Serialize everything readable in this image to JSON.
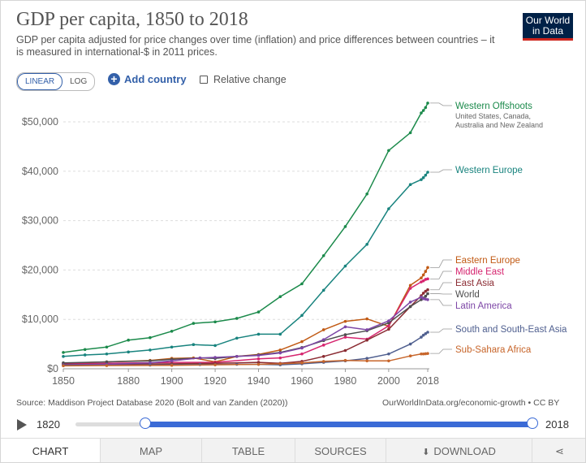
{
  "header": {
    "title": "GDP per capita, 1850 to 2018",
    "subtitle": "GDP per capita adjusted for price changes over time (inflation) and price differences between countries – it is measured in international-$ in 2011 prices.",
    "logo_line1": "Our World",
    "logo_line2": "in Data"
  },
  "controls": {
    "linear_label": "LINEAR",
    "log_label": "LOG",
    "add_country_label": "Add country",
    "relative_change_label": "Relative change"
  },
  "footer": {
    "source": "Source: Maddison Project Database 2020 (Bolt and van Zanden (2020))",
    "link": "OurWorldInData.org/economic-growth • CC BY"
  },
  "timeline": {
    "start_year": "1820",
    "end_year": "2018",
    "start_fraction": 0.153,
    "end_fraction": 1.0
  },
  "tabs": {
    "chart": "CHART",
    "map": "MAP",
    "table": "TABLE",
    "sources": "SOURCES",
    "download": "DOWNLOAD"
  },
  "chart_data": {
    "type": "line",
    "title": "GDP per capita, 1850 to 2018",
    "xlabel": "",
    "ylabel": "",
    "xlim": [
      1850,
      2018
    ],
    "ylim": [
      0,
      55000
    ],
    "x_ticks": [
      1850,
      1880,
      1900,
      1920,
      1940,
      1960,
      1980,
      2000,
      2018
    ],
    "x_tick_labels": [
      "1850",
      "1880",
      "1900",
      "1920",
      "1940",
      "1960",
      "1980",
      "2000",
      "2018"
    ],
    "y_ticks": [
      0,
      10000,
      20000,
      30000,
      40000,
      50000
    ],
    "y_tick_labels": [
      "$0",
      "$10,000",
      "$20,000",
      "$30,000",
      "$40,000",
      "$50,000"
    ],
    "series": [
      {
        "name": "Western Offshoots",
        "note": "United States, Canada, Australia and New Zealand",
        "color": "#1b8a4b",
        "points": [
          [
            1850,
            3300
          ],
          [
            1860,
            3900
          ],
          [
            1870,
            4400
          ],
          [
            1880,
            5800
          ],
          [
            1890,
            6300
          ],
          [
            1900,
            7600
          ],
          [
            1910,
            9200
          ],
          [
            1920,
            9500
          ],
          [
            1930,
            10200
          ],
          [
            1940,
            11500
          ],
          [
            1950,
            14600
          ],
          [
            1960,
            17200
          ],
          [
            1970,
            22900
          ],
          [
            1980,
            28800
          ],
          [
            1990,
            35400
          ],
          [
            2000,
            44200
          ],
          [
            2010,
            47800
          ],
          [
            2015,
            51800
          ],
          [
            2016,
            52300
          ],
          [
            2017,
            52900
          ],
          [
            2018,
            53800
          ]
        ]
      },
      {
        "name": "Western Europe",
        "color": "#18837e",
        "points": [
          [
            1850,
            2500
          ],
          [
            1860,
            2800
          ],
          [
            1870,
            3000
          ],
          [
            1880,
            3400
          ],
          [
            1890,
            3800
          ],
          [
            1900,
            4400
          ],
          [
            1910,
            4900
          ],
          [
            1920,
            4700
          ],
          [
            1930,
            6200
          ],
          [
            1940,
            7000
          ],
          [
            1950,
            7000
          ],
          [
            1960,
            10800
          ],
          [
            1970,
            15900
          ],
          [
            1980,
            20800
          ],
          [
            1990,
            25200
          ],
          [
            2000,
            32400
          ],
          [
            2010,
            37300
          ],
          [
            2015,
            38300
          ],
          [
            2016,
            38700
          ],
          [
            2017,
            39200
          ],
          [
            2018,
            39800
          ]
        ]
      },
      {
        "name": "Eastern Europe",
        "color": "#c15a14",
        "points": [
          [
            1850,
            1100
          ],
          [
            1870,
            1400
          ],
          [
            1890,
            1700
          ],
          [
            1900,
            2100
          ],
          [
            1910,
            2200
          ],
          [
            1920,
            1400
          ],
          [
            1930,
            2500
          ],
          [
            1940,
            2900
          ],
          [
            1950,
            3800
          ],
          [
            1960,
            5500
          ],
          [
            1970,
            7900
          ],
          [
            1980,
            9600
          ],
          [
            1990,
            10100
          ],
          [
            2000,
            8600
          ],
          [
            2010,
            16900
          ],
          [
            2015,
            18400
          ],
          [
            2016,
            19000
          ],
          [
            2017,
            19700
          ],
          [
            2018,
            20500
          ]
        ]
      },
      {
        "name": "Middle East",
        "color": "#d6246e",
        "points": [
          [
            1850,
            1000
          ],
          [
            1870,
            1100
          ],
          [
            1900,
            1300
          ],
          [
            1920,
            1300
          ],
          [
            1940,
            2000
          ],
          [
            1950,
            2200
          ],
          [
            1960,
            3000
          ],
          [
            1970,
            4800
          ],
          [
            1980,
            6400
          ],
          [
            1990,
            6000
          ],
          [
            2000,
            8700
          ],
          [
            2010,
            16300
          ],
          [
            2015,
            17600
          ],
          [
            2016,
            17800
          ],
          [
            2017,
            18100
          ],
          [
            2018,
            18200
          ]
        ]
      },
      {
        "name": "East Asia",
        "color": "#8b2c33",
        "points": [
          [
            1850,
            900
          ],
          [
            1870,
            900
          ],
          [
            1900,
            1000
          ],
          [
            1920,
            1100
          ],
          [
            1940,
            1300
          ],
          [
            1950,
            1100
          ],
          [
            1960,
            1500
          ],
          [
            1970,
            2500
          ],
          [
            1980,
            3700
          ],
          [
            1990,
            5800
          ],
          [
            2000,
            8000
          ],
          [
            2010,
            12600
          ],
          [
            2015,
            14800
          ],
          [
            2016,
            15300
          ],
          [
            2017,
            15700
          ],
          [
            2018,
            16000
          ]
        ]
      },
      {
        "name": "World",
        "color": "#4e4e4e",
        "points": [
          [
            1850,
            1200
          ],
          [
            1870,
            1400
          ],
          [
            1890,
            1600
          ],
          [
            1900,
            1900
          ],
          [
            1913,
            2200
          ],
          [
            1920,
            2100
          ],
          [
            1930,
            2500
          ],
          [
            1940,
            2800
          ],
          [
            1950,
            3300
          ],
          [
            1960,
            4300
          ],
          [
            1970,
            5700
          ],
          [
            1980,
            6900
          ],
          [
            1990,
            7700
          ],
          [
            2000,
            9300
          ],
          [
            2010,
            12600
          ],
          [
            2015,
            14000
          ],
          [
            2016,
            14300
          ],
          [
            2017,
            14700
          ],
          [
            2018,
            15200
          ]
        ]
      },
      {
        "name": "Latin America",
        "color": "#7d46a6",
        "points": [
          [
            1850,
            800
          ],
          [
            1870,
            900
          ],
          [
            1890,
            1200
          ],
          [
            1900,
            1600
          ],
          [
            1913,
            2200
          ],
          [
            1920,
            2300
          ],
          [
            1930,
            2500
          ],
          [
            1940,
            2700
          ],
          [
            1950,
            3200
          ],
          [
            1960,
            4200
          ],
          [
            1970,
            5900
          ],
          [
            1980,
            8500
          ],
          [
            1990,
            7900
          ],
          [
            2000,
            9700
          ],
          [
            2010,
            13500
          ],
          [
            2015,
            14500
          ],
          [
            2016,
            14200
          ],
          [
            2017,
            14100
          ],
          [
            2018,
            14000
          ]
        ]
      },
      {
        "name": "South and South-East Asia",
        "color": "#4f5f8f",
        "points": [
          [
            1850,
            700
          ],
          [
            1870,
            700
          ],
          [
            1890,
            750
          ],
          [
            1900,
            800
          ],
          [
            1913,
            850
          ],
          [
            1920,
            850
          ],
          [
            1930,
            900
          ],
          [
            1940,
            900
          ],
          [
            1950,
            800
          ],
          [
            1960,
            1000
          ],
          [
            1970,
            1300
          ],
          [
            1980,
            1600
          ],
          [
            1990,
            2100
          ],
          [
            2000,
            3000
          ],
          [
            2010,
            5000
          ],
          [
            2015,
            6400
          ],
          [
            2016,
            6800
          ],
          [
            2017,
            7100
          ],
          [
            2018,
            7400
          ]
        ]
      },
      {
        "name": "Sub-Sahara Africa",
        "color": "#c7652a",
        "points": [
          [
            1850,
            600
          ],
          [
            1870,
            650
          ],
          [
            1900,
            700
          ],
          [
            1920,
            800
          ],
          [
            1940,
            900
          ],
          [
            1950,
            1000
          ],
          [
            1960,
            1200
          ],
          [
            1970,
            1500
          ],
          [
            1980,
            1700
          ],
          [
            1990,
            1600
          ],
          [
            2000,
            1600
          ],
          [
            2010,
            2600
          ],
          [
            2015,
            3000
          ],
          [
            2016,
            3000
          ],
          [
            2017,
            3050
          ],
          [
            2018,
            3100
          ]
        ]
      }
    ],
    "legend_position": "right"
  }
}
